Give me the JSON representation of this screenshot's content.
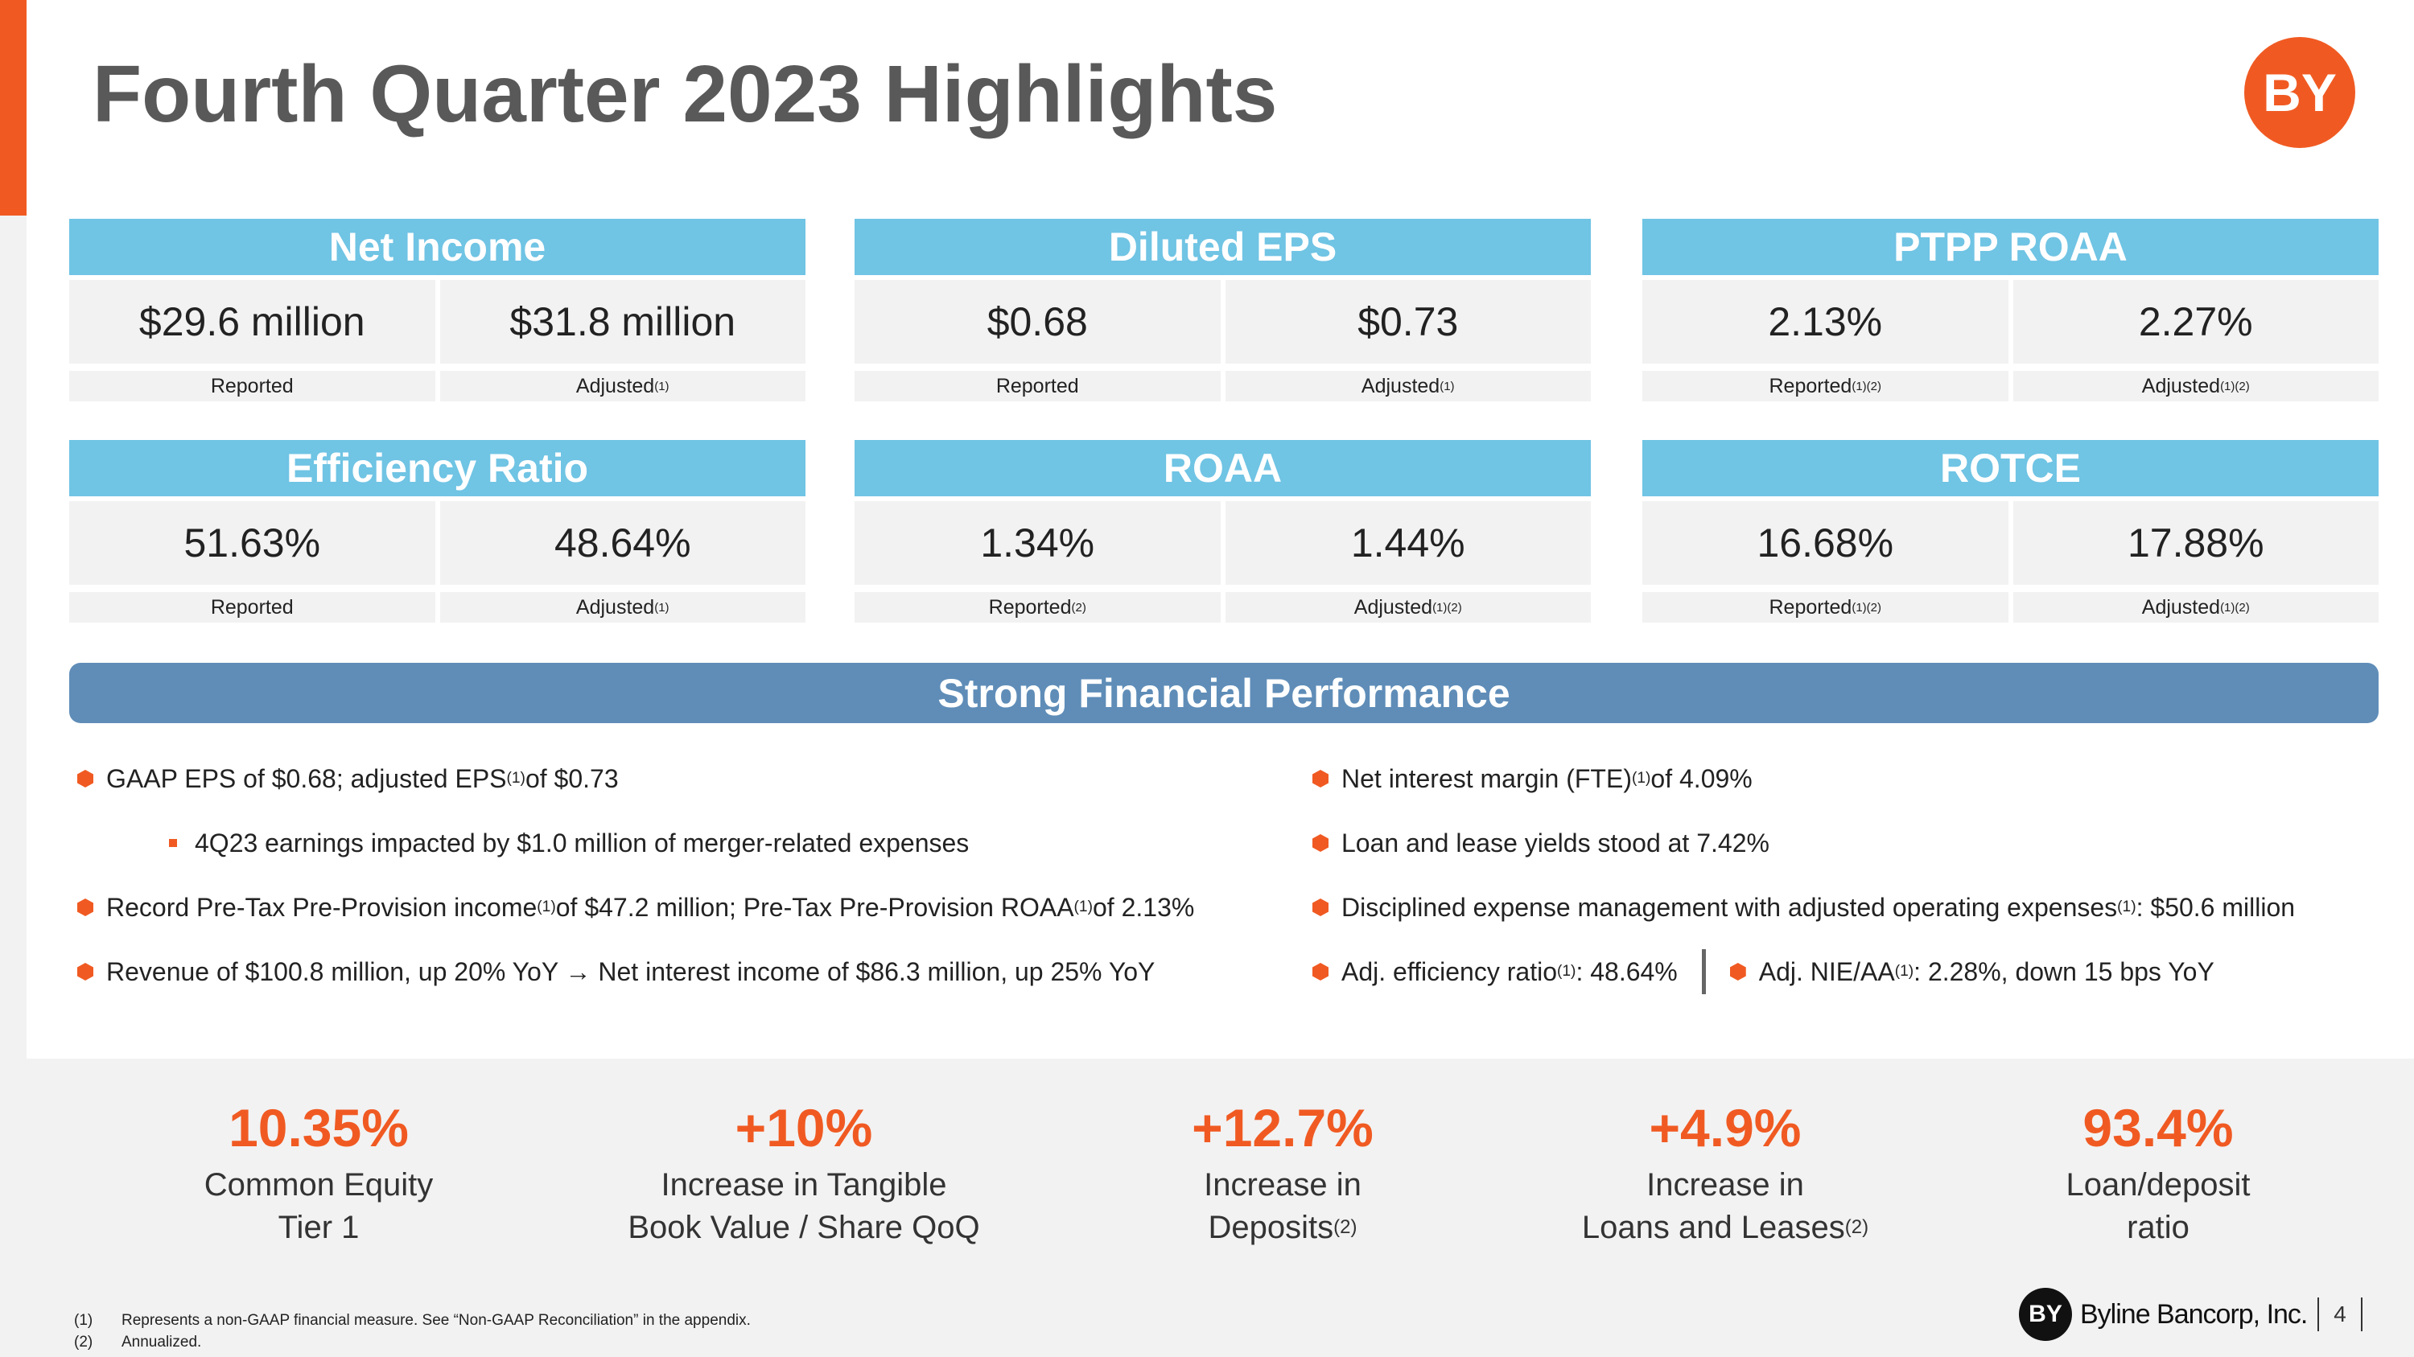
{
  "title": "Fourth Quarter 2023 Highlights",
  "logo": "BY",
  "cards": [
    {
      "title": "Net Income",
      "values": [
        "$29.6 million",
        "$31.8 million"
      ],
      "labels": [
        [
          "Reported"
        ],
        [
          "Adjusted",
          "(1)"
        ]
      ]
    },
    {
      "title": "Diluted EPS",
      "values": [
        "$0.68",
        "$0.73"
      ],
      "labels": [
        [
          "Reported"
        ],
        [
          "Adjusted",
          "(1)"
        ]
      ]
    },
    {
      "title": "PTPP ROAA",
      "values": [
        "2.13%",
        "2.27%"
      ],
      "labels": [
        [
          "Reported",
          "(1)(2)"
        ],
        [
          "Adjusted",
          "(1)(2)"
        ]
      ]
    },
    {
      "title": "Efficiency Ratio",
      "values": [
        "51.63%",
        "48.64%"
      ],
      "labels": [
        [
          "Reported"
        ],
        [
          "Adjusted",
          "(1)"
        ]
      ]
    },
    {
      "title": "ROAA",
      "values": [
        "1.34%",
        "1.44%"
      ],
      "labels": [
        [
          "Reported",
          "(2)"
        ],
        [
          "Adjusted",
          "(1)(2)"
        ]
      ]
    },
    {
      "title": "ROTCE",
      "values": [
        "16.68%",
        "17.88%"
      ],
      "labels": [
        [
          "Reported",
          "(1)(2)"
        ],
        [
          "Adjusted",
          "(1)(2)"
        ]
      ]
    }
  ],
  "banner": "Strong Financial Performance",
  "left_bullets": [
    {
      "parts": [
        "GAAP EPS of $0.68; adjusted EPS",
        "(1)",
        " of $0.73"
      ],
      "children": [
        [
          "4Q23 earnings impacted by $1.0 million of merger-related expenses"
        ]
      ]
    },
    {
      "parts": [
        "Record Pre-Tax Pre-Provision income",
        "(1)",
        " of $47.2 million; Pre-Tax Pre-Provision ROAA",
        "(1)",
        " of 2.13%"
      ]
    },
    {
      "parts": [
        "Revenue of $100.8 million, up 20% YoY → Net interest income of $86.3 million, up 25% YoY"
      ]
    }
  ],
  "right_bullets": [
    [
      [
        "Net interest margin (FTE)",
        "(1)",
        " of 4.09%"
      ]
    ],
    [
      [
        "Loan and lease yields stood at 7.42%"
      ]
    ],
    [
      [
        "Disciplined expense management with adjusted operating expenses",
        "(1)",
        ": $50.6 million"
      ]
    ],
    [
      [
        "Adj. efficiency ratio",
        "(1)",
        ": 48.64%"
      ],
      [
        "Adj. NIE/AA",
        "(1)",
        ": 2.28%, down 15 bps YoY"
      ]
    ]
  ],
  "stats": [
    {
      "value": "10.35%",
      "lines": [
        [
          "Common Equity"
        ],
        [
          "Tier 1"
        ]
      ]
    },
    {
      "value": "+10%",
      "lines": [
        [
          "Increase in Tangible"
        ],
        [
          "Book Value / Share QoQ"
        ]
      ]
    },
    {
      "value": "+12.7%",
      "lines": [
        [
          "Increase in"
        ],
        [
          "Deposits",
          "(2)"
        ]
      ]
    },
    {
      "value": "+4.9%",
      "lines": [
        [
          "Increase in"
        ],
        [
          "Loans and Leases",
          "(2)"
        ]
      ]
    },
    {
      "value": "93.4%",
      "lines": [
        [
          "Loan/deposit"
        ],
        [
          "ratio"
        ]
      ]
    }
  ],
  "footnotes": [
    {
      "mark": "(1)",
      "text": "Represents a non-GAAP financial measure.  See “Non-GAAP Reconciliation” in the appendix."
    },
    {
      "mark": "(2)",
      "text": "Annualized."
    }
  ],
  "footer_logo": "BY",
  "company": "Byline Bancorp, Inc.",
  "page_number": "4"
}
